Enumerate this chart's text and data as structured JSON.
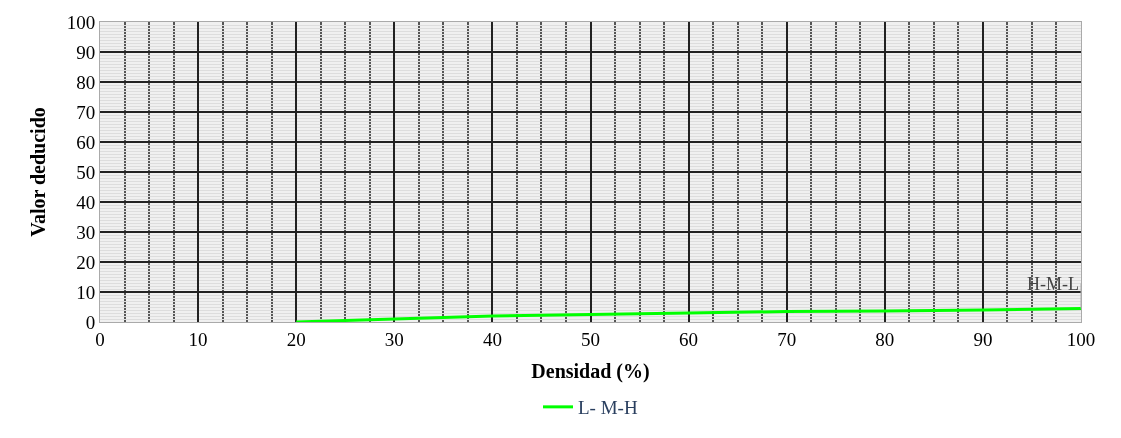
{
  "chart_data": {
    "type": "line",
    "xlabel": "Densidad (%)",
    "ylabel": "Valor deducido",
    "x": [
      20,
      30,
      40,
      50,
      60,
      70,
      80,
      90,
      100
    ],
    "series": [
      {
        "name": "L- M-H",
        "color": "#00ff00",
        "values": [
          0,
          1,
          2,
          2.5,
          3,
          3.5,
          3.7,
          4,
          4.5
        ]
      }
    ],
    "annotations": [
      {
        "text": "H-M-L",
        "x": 100,
        "y": 4.5
      }
    ],
    "xlim": [
      0,
      100
    ],
    "xticks": [
      0,
      10,
      20,
      30,
      40,
      50,
      60,
      70,
      80,
      90,
      100
    ],
    "ylim": [
      0,
      100
    ],
    "yticks": [
      0,
      10,
      20,
      30,
      40,
      50,
      60,
      70,
      80,
      90,
      100
    ],
    "grid": true,
    "legend": "bottom",
    "marker": "none",
    "line_style": "solid"
  }
}
